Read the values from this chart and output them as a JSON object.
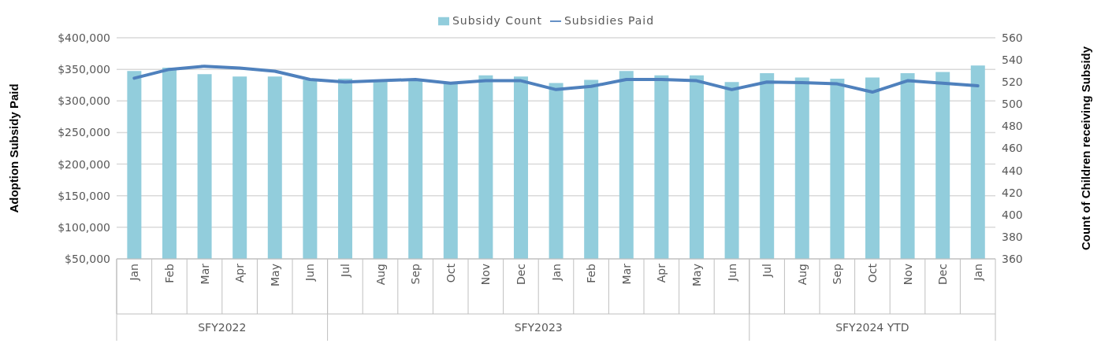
{
  "chart_data": {
    "type": "bar",
    "categories": [
      "Jan",
      "Feb",
      "Mar",
      "Apr",
      "May",
      "Jun",
      "Jul",
      "Aug",
      "Sep",
      "Oct",
      "Nov",
      "Dec",
      "Jan",
      "Feb",
      "Mar",
      "Apr",
      "May",
      "Jun",
      "Jul",
      "Aug",
      "Sep",
      "Oct",
      "Nov",
      "Dec",
      "Jan"
    ],
    "series": [
      {
        "name": "Subsidy Count",
        "axis": "y2",
        "color": "#92cddc",
        "values": [
          530,
          533,
          527,
          525,
          525,
          522,
          523,
          521,
          521,
          519,
          526,
          525,
          519,
          522,
          530,
          526,
          526,
          520,
          528,
          524,
          523,
          524,
          528,
          529,
          535
        ]
      },
      {
        "name": "Subsidies Paid",
        "type": "line",
        "axis": "y",
        "color": "#4f81bd",
        "values": [
          336000,
          350000,
          355000,
          352000,
          347000,
          334000,
          330000,
          332000,
          334000,
          328000,
          332000,
          332000,
          318000,
          323000,
          334000,
          334000,
          332000,
          318000,
          330000,
          329000,
          327000,
          314000,
          332000,
          328000,
          324000
        ]
      }
    ],
    "ylabel": "Adoption Subsidy Paid",
    "y2label": "Count of Children receiving Subsidy",
    "ylim": [
      50000,
      400000
    ],
    "yticks": [
      {
        "value": 50000,
        "label": "$50,000"
      },
      {
        "value": 100000,
        "label": "$100,000"
      },
      {
        "value": 150000,
        "label": "$150,000"
      },
      {
        "value": 200000,
        "label": "$200,000"
      },
      {
        "value": 250000,
        "label": "$250,000"
      },
      {
        "value": 300000,
        "label": "$300,000"
      },
      {
        "value": 350000,
        "label": "$350,000"
      },
      {
        "value": 400000,
        "label": "$400,000"
      }
    ],
    "y2lim": [
      360,
      560
    ],
    "y2ticks": [
      360,
      380,
      400,
      420,
      440,
      460,
      480,
      500,
      520,
      540,
      560
    ],
    "annotations": [
      "SFY2022",
      "SFY2023",
      "SFY2024 YTD"
    ],
    "grid": "y",
    "legend": "top",
    "marker": "none",
    "line_style": "solid"
  }
}
